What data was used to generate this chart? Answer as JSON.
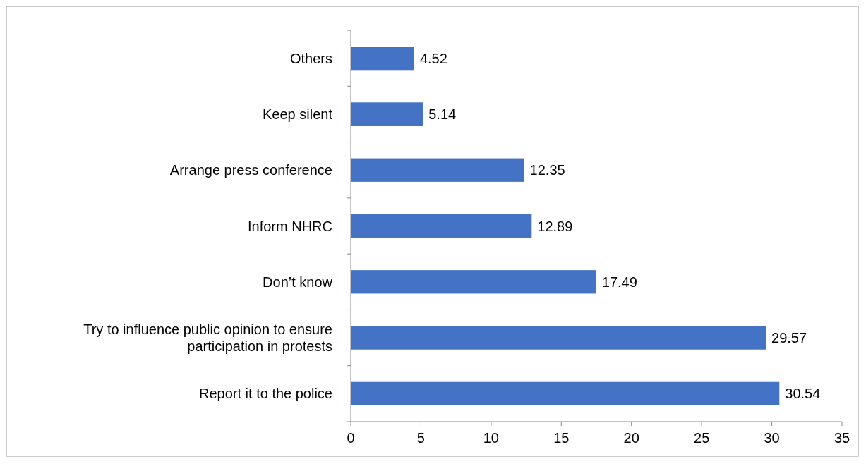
{
  "chart_data": {
    "type": "bar",
    "orientation": "horizontal",
    "categories": [
      "Others",
      "Keep silent",
      "Arrange press conference",
      "Inform NHRC",
      "Don’t know",
      "Try to influence public opinion to ensure participation in protests",
      "Report it to the police"
    ],
    "values": [
      4.52,
      5.14,
      12.35,
      12.89,
      17.49,
      29.57,
      30.54
    ],
    "color": "#4472c4",
    "data_labels": true,
    "xlim": [
      0,
      35
    ],
    "xticks": [
      0,
      5,
      10,
      15,
      20,
      25,
      30,
      35
    ],
    "grid": false
  }
}
